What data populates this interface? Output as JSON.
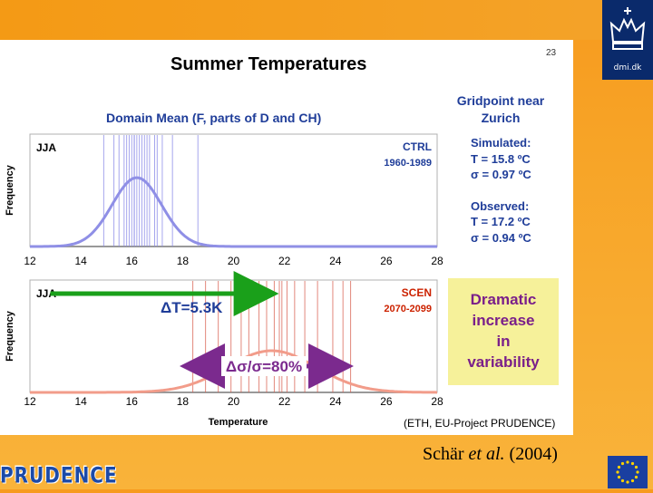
{
  "slide": {
    "title": "Summer Temperatures",
    "page_number": "23",
    "domain_mean_heading": "Domain Mean (F, parts of D and CH)",
    "gridpoint_heading_line1": "Gridpoint near",
    "gridpoint_heading_line2": "Zurich",
    "simulated_label": "Simulated:",
    "simulated_T": "T = 15.8 ºC",
    "simulated_sigma": "σ = 0.97 ºC",
    "observed_label": "Observed:",
    "observed_T": "T = 17.2 ºC",
    "observed_sigma": "σ = 0.94 ºC",
    "dramatic_text": [
      "Dramatic",
      "increase",
      "in",
      "variability"
    ],
    "source_note": "(ETH, EU-Project PRUDENCE)",
    "citation_pre": "Schär ",
    "citation_em": "et al.",
    "citation_post": " (2004)",
    "prudence_logo": "PRUDENCE",
    "dmi_logo": "dmi.dk"
  },
  "colors": {
    "ctrl_label": "#1f3d99",
    "scen_label": "#cc2200",
    "ctrl_curve": "#8f8fe6",
    "scen_curve": "#f29c8a",
    "ctrl_lines": "#8888e8",
    "scen_lines": "#d96050",
    "delta_T_arrow": "#1aa01a",
    "delta_sigma_arrow": "#7b2a8e",
    "dramatic_box": "#f6f19a",
    "dramatic_text": "#7a1f8a",
    "heading_blue": "#1f3d99",
    "title": "#000000"
  },
  "chart_data": [
    {
      "type": "line",
      "panel": "top",
      "season_label": "JJA",
      "series_label": "CTRL",
      "period_label": "1960-1989",
      "ylabel": "Frequency",
      "xlim": [
        12,
        28
      ],
      "xticks": [
        "12",
        "14",
        "16",
        "18",
        "20",
        "22",
        "24",
        "26",
        "28"
      ],
      "curve": {
        "mean": 16.2,
        "sigma": 0.97
      },
      "yearly_values": [
        14.9,
        15.3,
        15.5,
        15.7,
        15.8,
        15.9,
        16.0,
        16.1,
        16.1,
        16.2,
        16.3,
        16.4,
        16.5,
        16.6,
        16.7,
        16.9,
        17.0,
        17.2,
        17.6,
        18.6
      ]
    },
    {
      "type": "line",
      "panel": "bottom",
      "season_label": "JJA",
      "series_label": "SCEN",
      "period_label": "2070-2099",
      "ylabel": "Frequency",
      "xlabel": "Temperature",
      "xlim": [
        12,
        28
      ],
      "xticks": [
        "12",
        "14",
        "16",
        "18",
        "20",
        "22",
        "24",
        "26",
        "28"
      ],
      "curve": {
        "mean": 21.5,
        "sigma": 1.75
      },
      "yearly_values": [
        18.4,
        18.9,
        19.4,
        19.9,
        20.3,
        20.6,
        21.0,
        21.3,
        21.6,
        21.8,
        21.9,
        22.1,
        22.4,
        22.8,
        23.3,
        23.9,
        24.3,
        24.6
      ],
      "delta_T_label": "ΔT=5.3K",
      "delta_sigma_label": "Δσ/σ=80%"
    }
  ]
}
